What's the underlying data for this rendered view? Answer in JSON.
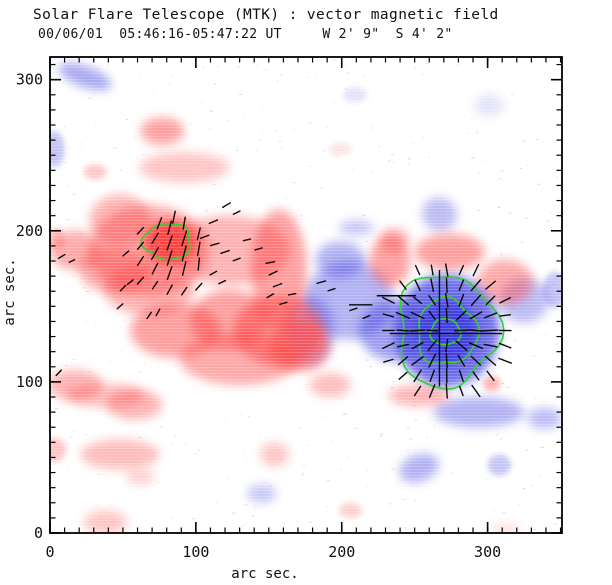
{
  "chart_data": {
    "type": "heatmap",
    "title": "Solar Flare Telescope (MTK) : vector magnetic field",
    "subtitle": "00/06/01  05:46:16-05:47:22 UT     W 2' 9\"  S 4' 2\"",
    "xlabel": "arc sec.",
    "ylabel": "arc sec.",
    "xlim": [
      0,
      351
    ],
    "ylim": [
      0,
      315
    ],
    "xticks": [
      0,
      100,
      200,
      300
    ],
    "yticks": [
      0,
      100,
      200,
      300
    ],
    "minor_tick_step": 10,
    "grid": false,
    "legend": "none",
    "colors": {
      "positive_polarity": "#ff4040",
      "negative_polarity": "#3d3de0",
      "contour": "#2fd42f",
      "vector": "#0a0a0a",
      "axis": "#000000",
      "background": "#ffffff"
    },
    "units": "arc sec.",
    "blobs": [
      {
        "x": 24,
        "y": 302,
        "rx": 19,
        "ry": 7,
        "rot": 20,
        "pol": "neg",
        "op": 0.45
      },
      {
        "x": 3,
        "y": 254,
        "rx": 7,
        "ry": 12,
        "rot": 0,
        "pol": "neg",
        "op": 0.3
      },
      {
        "x": 267,
        "y": 211,
        "rx": 12,
        "ry": 11,
        "rot": 25,
        "pol": "neg",
        "op": 0.35
      },
      {
        "x": 210,
        "y": 202,
        "rx": 12,
        "ry": 5,
        "rot": 0,
        "pol": "neg",
        "op": 0.3
      },
      {
        "x": 205,
        "y": 154,
        "rx": 31,
        "ry": 26,
        "rot": 0,
        "pol": "neg",
        "op": 0.4
      },
      {
        "x": 236,
        "y": 134,
        "rx": 24,
        "ry": 20,
        "rot": 0,
        "pol": "neg",
        "op": 0.5
      },
      {
        "x": 199,
        "y": 181,
        "rx": 17,
        "ry": 12,
        "rot": 0,
        "pol": "neg",
        "op": 0.4
      },
      {
        "x": 178,
        "y": 134,
        "rx": 17,
        "ry": 23,
        "rot": 0,
        "pol": "neg",
        "op": 0.35
      },
      {
        "x": 325,
        "y": 154,
        "rx": 17,
        "ry": 15,
        "rot": 0,
        "pol": "neg",
        "op": 0.35
      },
      {
        "x": 346,
        "y": 161,
        "rx": 8,
        "ry": 12,
        "rot": 0,
        "pol": "neg",
        "op": 0.3
      },
      {
        "x": 294,
        "y": 80,
        "rx": 31,
        "ry": 10,
        "rot": 0,
        "pol": "neg",
        "op": 0.4
      },
      {
        "x": 339,
        "y": 76,
        "rx": 12,
        "ry": 7,
        "rot": 0,
        "pol": "neg",
        "op": 0.35
      },
      {
        "x": 253,
        "y": 43,
        "rx": 14,
        "ry": 9,
        "rot": -20,
        "pol": "neg",
        "op": 0.4
      },
      {
        "x": 308,
        "y": 45,
        "rx": 8,
        "ry": 7,
        "rot": 0,
        "pol": "neg",
        "op": 0.3
      },
      {
        "x": 145,
        "y": 26,
        "rx": 10,
        "ry": 6,
        "rot": 0,
        "pol": "neg",
        "op": 0.3
      },
      {
        "x": 366,
        "y": 134,
        "rx": 10,
        "ry": 17,
        "rot": 0,
        "pol": "neg",
        "op": 0.3
      },
      {
        "x": 301,
        "y": 283,
        "rx": 10,
        "ry": 7,
        "rot": 0,
        "pol": "neg",
        "op": 0.15
      },
      {
        "x": 209,
        "y": 290,
        "rx": 8,
        "ry": 5,
        "rot": 0,
        "pol": "neg",
        "op": 0.15
      },
      {
        "x": 77,
        "y": 266,
        "rx": 15,
        "ry": 9,
        "rot": 0,
        "pol": "pos",
        "op": 0.5
      },
      {
        "x": 92,
        "y": 242,
        "rx": 31,
        "ry": 10,
        "rot": 0,
        "pol": "pos",
        "op": 0.3
      },
      {
        "x": 31,
        "y": 239,
        "rx": 8,
        "ry": 5,
        "rot": 0,
        "pol": "pos",
        "op": 0.3
      },
      {
        "x": 68,
        "y": 187,
        "rx": 41,
        "ry": 30,
        "rot": 0,
        "pol": "pos",
        "op": 0.45
      },
      {
        "x": 123,
        "y": 187,
        "rx": 41,
        "ry": 23,
        "rot": 0,
        "pol": "pos",
        "op": 0.4
      },
      {
        "x": 48,
        "y": 207,
        "rx": 21,
        "ry": 17,
        "rot": 0,
        "pol": "pos",
        "op": 0.4
      },
      {
        "x": 17,
        "y": 187,
        "rx": 17,
        "ry": 13,
        "rot": 0,
        "pol": "pos",
        "op": 0.45
      },
      {
        "x": 44,
        "y": 174,
        "rx": 24,
        "ry": 15,
        "rot": 0,
        "pol": "pos",
        "op": 0.45
      },
      {
        "x": 68,
        "y": 161,
        "rx": 31,
        "ry": 17,
        "rot": 0,
        "pol": "pos",
        "op": 0.4
      },
      {
        "x": 157,
        "y": 174,
        "rx": 19,
        "ry": 40,
        "rot": 0,
        "pol": "pos",
        "op": 0.5
      },
      {
        "x": 157,
        "y": 134,
        "rx": 31,
        "ry": 23,
        "rot": 0,
        "pol": "pos",
        "op": 0.55
      },
      {
        "x": 123,
        "y": 141,
        "rx": 27,
        "ry": 20,
        "rot": 0,
        "pol": "pos",
        "op": 0.5
      },
      {
        "x": 86,
        "y": 134,
        "rx": 31,
        "ry": 18,
        "rot": 0,
        "pol": "pos",
        "op": 0.5
      },
      {
        "x": 130,
        "y": 115,
        "rx": 41,
        "ry": 17,
        "rot": 0,
        "pol": "pos",
        "op": 0.45
      },
      {
        "x": 171,
        "y": 124,
        "rx": 21,
        "ry": 17,
        "rot": 0,
        "pol": "pos",
        "op": 0.55
      },
      {
        "x": 233,
        "y": 180,
        "rx": 14,
        "ry": 17,
        "rot": 0,
        "pol": "pos",
        "op": 0.5
      },
      {
        "x": 274,
        "y": 186,
        "rx": 24,
        "ry": 12,
        "rot": 0,
        "pol": "pos",
        "op": 0.5
      },
      {
        "x": 312,
        "y": 166,
        "rx": 19,
        "ry": 15,
        "rot": 0,
        "pol": "pos",
        "op": 0.45
      },
      {
        "x": 236,
        "y": 194,
        "rx": 10,
        "ry": 8,
        "rot": 0,
        "pol": "pos",
        "op": 0.4
      },
      {
        "x": 192,
        "y": 98,
        "rx": 14,
        "ry": 8,
        "rot": 0,
        "pol": "pos",
        "op": 0.35
      },
      {
        "x": 253,
        "y": 91,
        "rx": 21,
        "ry": 7,
        "rot": 0,
        "pol": "pos",
        "op": 0.4
      },
      {
        "x": 17,
        "y": 98,
        "rx": 19,
        "ry": 10,
        "rot": 0,
        "pol": "pos",
        "op": 0.4
      },
      {
        "x": 38,
        "y": 91,
        "rx": 27,
        "ry": 8,
        "rot": 0,
        "pol": "pos",
        "op": 0.35
      },
      {
        "x": 58,
        "y": 85,
        "rx": 19,
        "ry": 10,
        "rot": 0,
        "pol": "pos",
        "op": 0.4
      },
      {
        "x": 3,
        "y": 55,
        "rx": 8,
        "ry": 8,
        "rot": 0,
        "pol": "pos",
        "op": 0.3
      },
      {
        "x": 48,
        "y": 52,
        "rx": 27,
        "ry": 10,
        "rot": 0,
        "pol": "pos",
        "op": 0.35
      },
      {
        "x": 62,
        "y": 37,
        "rx": 10,
        "ry": 5,
        "rot": 0,
        "pol": "pos",
        "op": 0.25
      },
      {
        "x": 38,
        "y": 7,
        "rx": 15,
        "ry": 8,
        "rot": 0,
        "pol": "pos",
        "op": 0.3
      },
      {
        "x": 154,
        "y": 52,
        "rx": 10,
        "ry": 8,
        "rot": 0,
        "pol": "pos",
        "op": 0.3
      },
      {
        "x": 206,
        "y": 15,
        "rx": 8,
        "ry": 5,
        "rot": 0,
        "pol": "pos",
        "op": 0.25
      },
      {
        "x": 199,
        "y": 254,
        "rx": 8,
        "ry": 4,
        "rot": 0,
        "pol": "pos",
        "op": 0.15
      },
      {
        "x": 4,
        "y": 195,
        "rx": 6,
        "ry": 7,
        "rot": 0,
        "pol": "pos",
        "op": 0.3
      },
      {
        "x": 303,
        "y": 99,
        "rx": 6,
        "ry": 5,
        "rot": 0,
        "pol": "pos",
        "op": 0.4
      },
      {
        "x": 312,
        "y": 3,
        "rx": 10,
        "ry": 3,
        "rot": 0,
        "pol": "pos",
        "op": 0.2
      },
      {
        "x": 82,
        "y": 192,
        "rx": 18,
        "ry": 15,
        "rot": 0,
        "pol": "pos",
        "op": 0.95
      },
      {
        "x": 272,
        "y": 134,
        "rx": 36,
        "ry": 37,
        "rot": 0,
        "pol": "neg",
        "op": 0.75
      },
      {
        "x": 272,
        "y": 133,
        "rx": 21,
        "ry": 21,
        "rot": 0,
        "pol": "neg",
        "op": 0.95
      }
    ],
    "contours": [
      {
        "cx": 80.5,
        "cy": 193,
        "rx": 16.4,
        "ry": 11.9,
        "wobble": 0.06,
        "seed": 1
      },
      {
        "cx": 272,
        "cy": 134,
        "rx": 34.2,
        "ry": 37.1,
        "wobble": 0.09,
        "seed": 2
      },
      {
        "cx": 272,
        "cy": 133,
        "rx": 20.5,
        "ry": 21.9,
        "wobble": 0.07,
        "seed": 3
      },
      {
        "cx": 271,
        "cy": 133,
        "rx": 10.3,
        "ry": 8.6,
        "wobble": 0.05,
        "seed": 4
      }
    ],
    "vectors": {
      "segments": [
        [
          62,
          180,
          55,
          7
        ],
        [
          62,
          190,
          50,
          6
        ],
        [
          62,
          200,
          45,
          6
        ],
        [
          72,
          175,
          62,
          8
        ],
        [
          72,
          185,
          60,
          9
        ],
        [
          72,
          195,
          58,
          8
        ],
        [
          75,
          205,
          68,
          8
        ],
        [
          82,
          172,
          70,
          9
        ],
        [
          82,
          182,
          72,
          10
        ],
        [
          82,
          192,
          70,
          10
        ],
        [
          82,
          202,
          75,
          9
        ],
        [
          85,
          209,
          78,
          8
        ],
        [
          92,
          175,
          76,
          9
        ],
        [
          92,
          185,
          75,
          10
        ],
        [
          92,
          195,
          72,
          10
        ],
        [
          92,
          205,
          80,
          8
        ],
        [
          102,
          178,
          84,
          8
        ],
        [
          102,
          188,
          80,
          9
        ],
        [
          102,
          198,
          76,
          8
        ],
        [
          52,
          185,
          40,
          5
        ],
        [
          55,
          166,
          38,
          5
        ],
        [
          62,
          167,
          48,
          6
        ],
        [
          72,
          164,
          55,
          6
        ],
        [
          82,
          161,
          60,
          7
        ],
        [
          92,
          160,
          55,
          6
        ],
        [
          102,
          163,
          47,
          6
        ],
        [
          48,
          150,
          40,
          5
        ],
        [
          106,
          196,
          20,
          6
        ],
        [
          113,
          191,
          15,
          6
        ],
        [
          120,
          186,
          18,
          6
        ],
        [
          128,
          181,
          20,
          5
        ],
        [
          135,
          194,
          12,
          5
        ],
        [
          143,
          188,
          15,
          5
        ],
        [
          112,
          206,
          22,
          6
        ],
        [
          121,
          217,
          30,
          6
        ],
        [
          128,
          212,
          25,
          5
        ],
        [
          112,
          172,
          28,
          5
        ],
        [
          118,
          166,
          25,
          5
        ],
        [
          151,
          179,
          10,
          6
        ],
        [
          153,
          172,
          25,
          6
        ],
        [
          156,
          164,
          20,
          6
        ],
        [
          151,
          157,
          30,
          5
        ],
        [
          160,
          152,
          15,
          5
        ],
        [
          166,
          158,
          10,
          5
        ],
        [
          186,
          166,
          15,
          6
        ],
        [
          193,
          161,
          18,
          5
        ],
        [
          208,
          148,
          18,
          5
        ],
        [
          217,
          143,
          22,
          5
        ],
        [
          8,
          183,
          30,
          5
        ],
        [
          15,
          180,
          25,
          4
        ],
        [
          50,
          162,
          45,
          5
        ],
        [
          68,
          144,
          55,
          5
        ],
        [
          74,
          146,
          60,
          5
        ],
        [
          6,
          106,
          45,
          5
        ]
      ],
      "radial_cluster": {
        "center": [
          272,
          134
        ],
        "x_range": [
          222,
          312
        ],
        "y_range": [
          94,
          174
        ],
        "spacing": 10,
        "r_min": 9,
        "r_max": 47,
        "len": 8
      },
      "long_lines": [
        [
          267,
          97,
          267,
          174
        ],
        [
          233,
          132,
          310,
          132
        ],
        [
          224,
          157,
          251,
          157
        ],
        [
          205,
          151,
          221,
          151
        ]
      ]
    }
  }
}
